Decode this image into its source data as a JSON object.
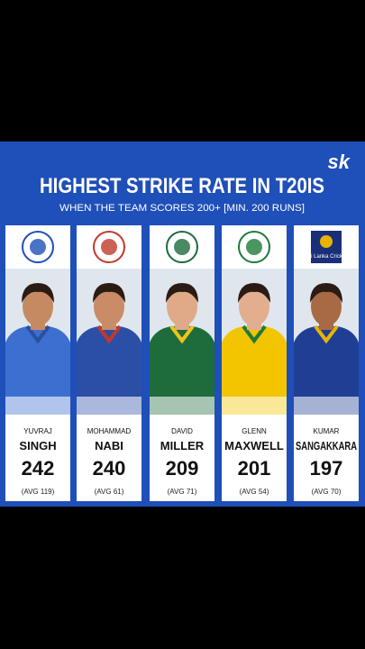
{
  "logo": "sk",
  "title": "HIGHEST STRIKE RATE IN T20IS",
  "subtitle": "WHEN THE TEAM SCORES 200+ [MIN. 200 RUNS]",
  "players": [
    {
      "first_name": "YUVRAJ",
      "last_name": "SINGH",
      "strike_rate": 242,
      "average": "(AVG 119)"
    },
    {
      "first_name": "MOHAMMAD",
      "last_name": "NABI",
      "strike_rate": 240,
      "average": "(AVG 61)"
    },
    {
      "first_name": "DAVID",
      "last_name": "MILLER",
      "strike_rate": 209,
      "average": "(AVG 71)"
    },
    {
      "first_name": "GLENN",
      "last_name": "MAXWELL",
      "strike_rate": 201,
      "average": "(AVG 54)"
    },
    {
      "first_name": "KUMAR",
      "last_name": "SANGAKKARA",
      "strike_rate": 197,
      "average": "(AVG 70)",
      "badge": "Sri Lanka Cricket"
    }
  ]
}
